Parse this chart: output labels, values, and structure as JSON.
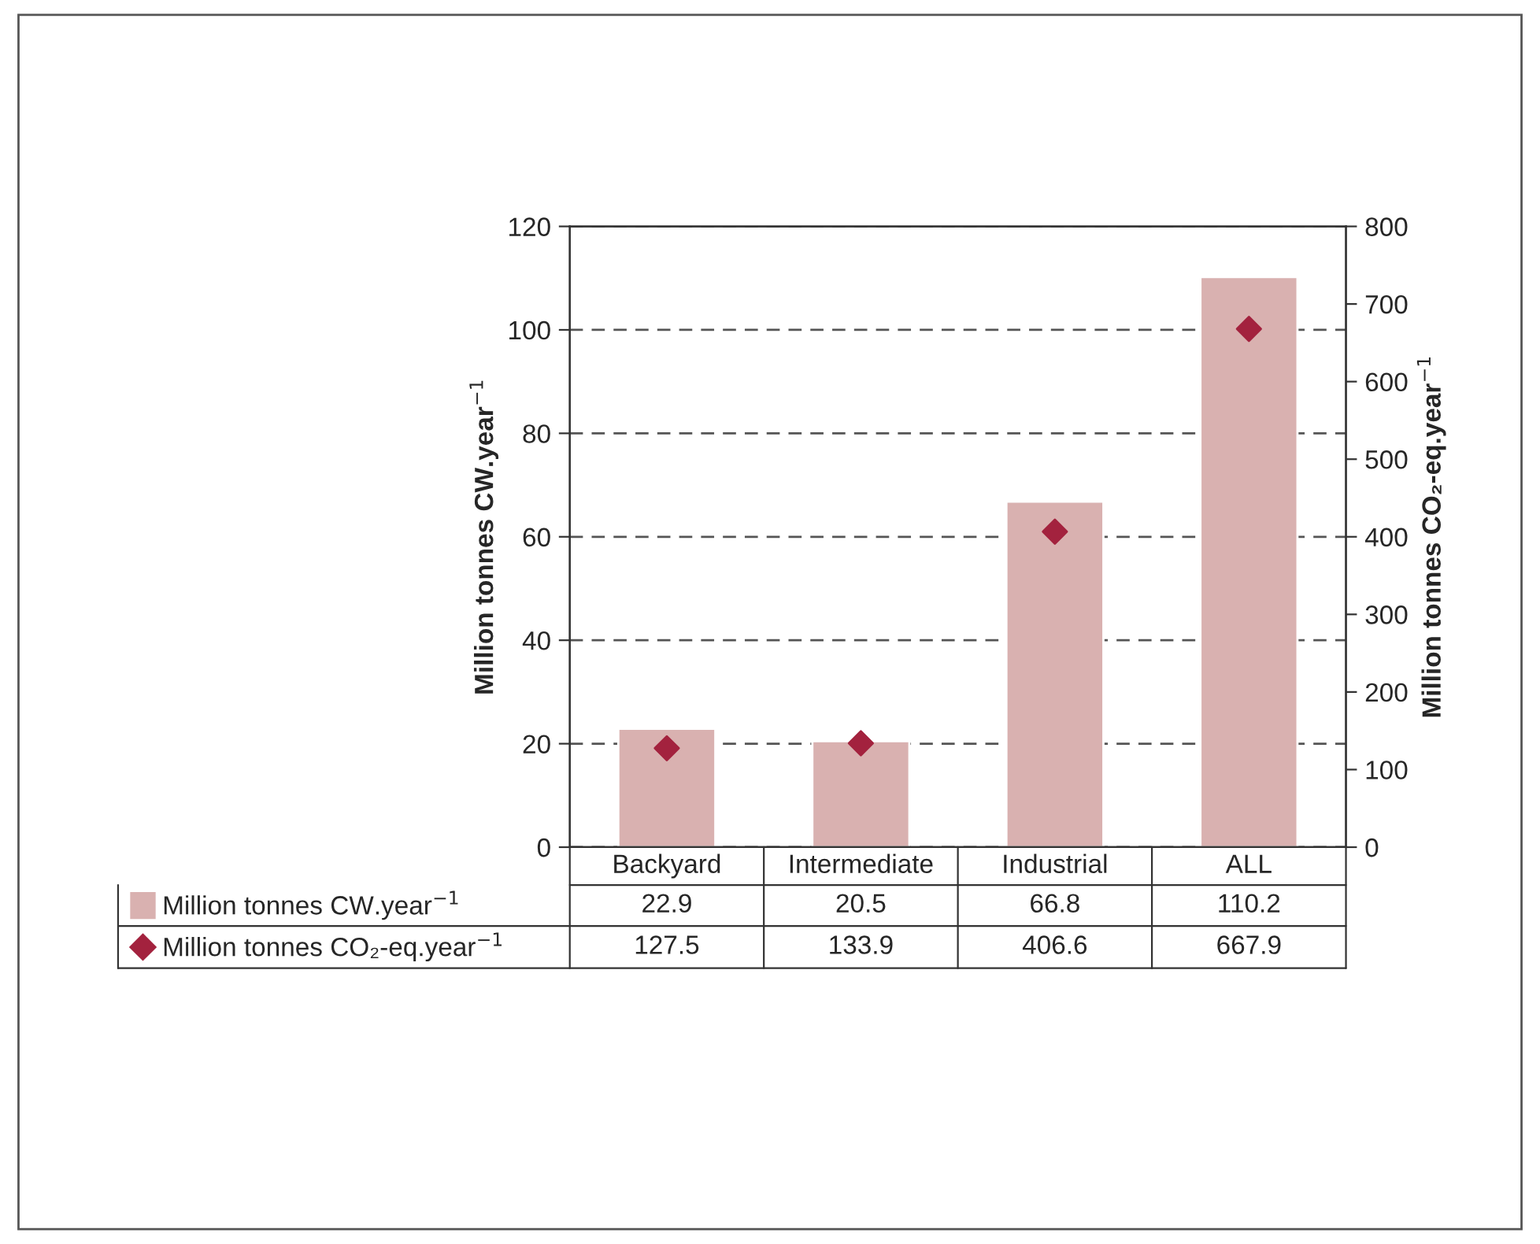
{
  "chart_data": {
    "type": "bar",
    "categories": [
      "Backyard",
      "Intermediate",
      "Industrial",
      "ALL"
    ],
    "series": [
      {
        "name": "Million tonnes CW.year$^{−1}$",
        "color": "#d9b1b0",
        "values": [
          22.9,
          20.5,
          66.8,
          110.2
        ]
      },
      {
        "name": "Million tonnes CO₂-eq.year$^{−1}$",
        "type": "scatter",
        "axis": "y2",
        "color": "#a3223e",
        "marker": "diamond",
        "values": [
          127.5,
          133.9,
          406.6,
          667.9
        ]
      }
    ],
    "ylabel": "Million tonnes CW.year$^{−1}$",
    "y2label": "Million tonnes CO₂-eq.year$^{−1}$",
    "ylim": [
      0,
      120
    ],
    "yticks": [
      0,
      20,
      40,
      60,
      80,
      100,
      120
    ],
    "y2lim": [
      0,
      800
    ],
    "y2ticks": [
      0,
      100,
      200,
      300,
      400,
      500,
      600,
      700,
      800
    ],
    "grid": "y",
    "legend": "bottom",
    "data_labels": true
  }
}
